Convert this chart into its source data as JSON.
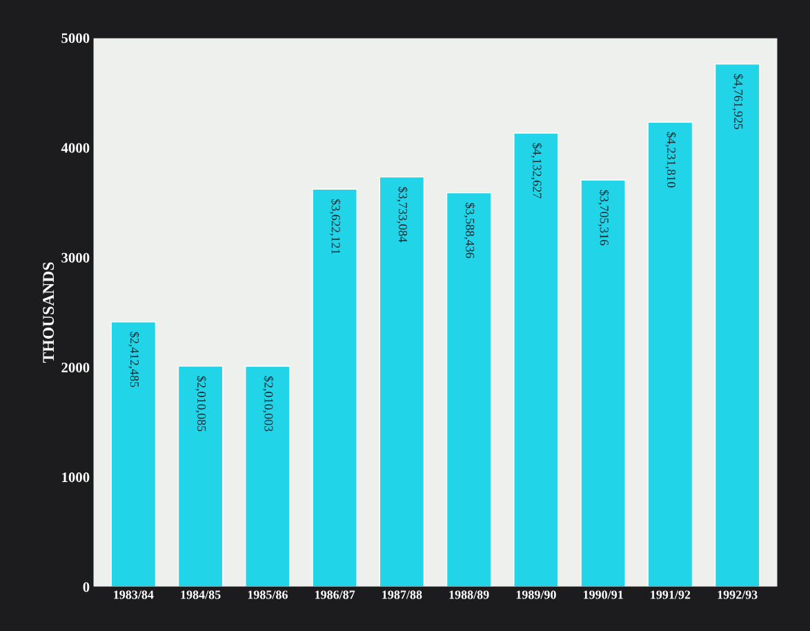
{
  "chart_data": {
    "type": "bar",
    "ylabel": "THOUSANDS",
    "categories": [
      "1983/84",
      "1984/85",
      "1985/86",
      "1986/87",
      "1987/88",
      "1988/89",
      "1989/90",
      "1990/91",
      "1991/92",
      "1992/93"
    ],
    "values": [
      2412.485,
      2010.085,
      2010.003,
      3622.121,
      3733.084,
      3588.436,
      4132.627,
      3705.316,
      4231.81,
      4761.925
    ],
    "annotations": [
      {
        "text": "$2,412,485",
        "x": "1983/84",
        "y": 2412.485
      },
      {
        "text": "$2,010,085",
        "x": "1984/85",
        "y": 2010.085
      },
      {
        "text": "$2,010,003",
        "x": "1985/86",
        "y": 2010.003
      },
      {
        "text": "$3,622,121",
        "x": "1986/87",
        "y": 3622.121
      },
      {
        "text": "$3,733,084",
        "x": "1987/88",
        "y": 3733.084
      },
      {
        "text": "$3,588,436",
        "x": "1988/89",
        "y": 3588.436
      },
      {
        "text": "$4,132,627",
        "x": "1989/90",
        "y": 4132.627
      },
      {
        "text": "$3,705,316",
        "x": "1990/91",
        "y": 3705.316
      },
      {
        "text": "$4,231,810",
        "x": "1991/92",
        "y": 4231.81
      },
      {
        "text": "$4,761,925",
        "x": "1992/93",
        "y": 4761.925
      }
    ],
    "color": "#22d4e8",
    "ylim": [
      0,
      5000
    ],
    "yticks": [
      0,
      1000,
      2000,
      3000,
      4000,
      5000
    ],
    "grid": false,
    "legend": false
  }
}
